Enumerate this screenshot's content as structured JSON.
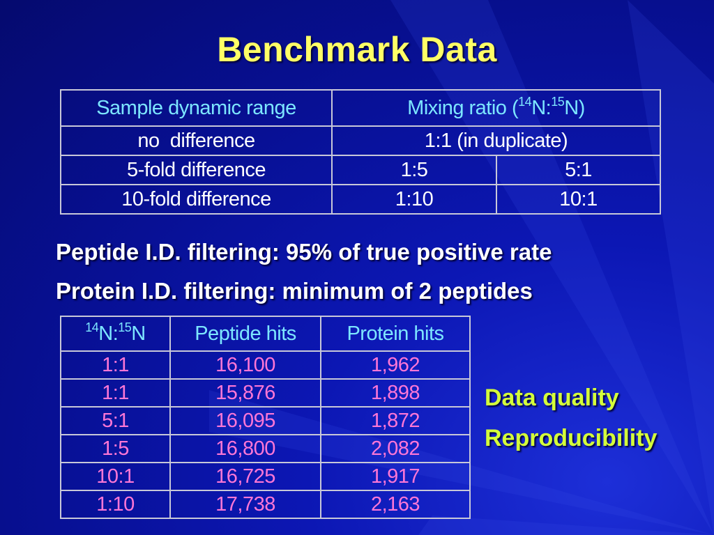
{
  "slide": {
    "title": "Benchmark Data"
  },
  "table1": {
    "header": {
      "col1": "Sample dynamic range",
      "col2_prefix": "Mixing ratio (",
      "col2_sup1": "14",
      "col2_mid": "N:",
      "col2_sup2": "15",
      "col2_suffix": "N)"
    },
    "rows": [
      {
        "label": "no  difference",
        "ratio": "1:1 (in duplicate)"
      },
      {
        "label": "5-fold difference",
        "a": "1:5",
        "b": "5:1"
      },
      {
        "label": "10-fold difference",
        "a": "1:10",
        "b": "10:1"
      }
    ]
  },
  "bullets": [
    "Peptide I.D. filtering: 95% of true positive rate",
    "Protein I.D. filtering: minimum of 2 peptides"
  ],
  "table2": {
    "header": {
      "sup1": "14",
      "mid": "N:",
      "sup2": "15",
      "suffix": "N",
      "peptide": "Peptide hits",
      "protein": "Protein hits"
    },
    "rows": [
      {
        "ratio": "1:1",
        "peptide": "16,100",
        "protein": "1,962"
      },
      {
        "ratio": "1:1",
        "peptide": "15,876",
        "protein": "1,898"
      },
      {
        "ratio": "5:1",
        "peptide": "16,095",
        "protein": "1,872"
      },
      {
        "ratio": "1:5",
        "peptide": "16,800",
        "protein": "2,082"
      },
      {
        "ratio": "10:1",
        "peptide": "16,725",
        "protein": "1,917"
      },
      {
        "ratio": "1:10",
        "peptide": "17,738",
        "protein": "2,163"
      }
    ]
  },
  "side_notes": [
    "Data quality",
    "Reproducibility"
  ],
  "colors": {
    "background": "#0a14a0",
    "title": "#ffff66",
    "header_text": "#7de6ff",
    "table2_values": "#ff77d6",
    "side_notes": "#d4ff3a"
  }
}
